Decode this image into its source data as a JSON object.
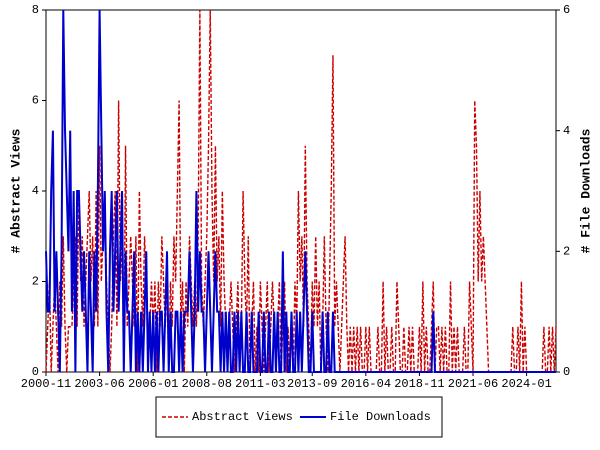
{
  "chart_data": {
    "type": "line",
    "x": [
      "2000-11",
      "2000-12",
      "2001-01",
      "2001-02",
      "2001-03",
      "2001-04",
      "2001-05",
      "2001-06",
      "2001-07",
      "2001-08",
      "2001-09",
      "2001-10",
      "2001-11",
      "2001-12",
      "2002-01",
      "2002-02",
      "2002-03",
      "2002-04",
      "2002-05",
      "2002-06",
      "2002-07",
      "2002-08",
      "2002-09",
      "2002-10",
      "2002-11",
      "2002-12",
      "2003-01",
      "2003-02",
      "2003-03",
      "2003-04",
      "2003-05",
      "2003-06",
      "2003-07",
      "2003-08",
      "2003-09",
      "2003-10",
      "2003-11",
      "2003-12",
      "2004-01",
      "2004-02",
      "2004-03",
      "2004-04",
      "2004-05",
      "2004-06",
      "2004-07",
      "2004-08",
      "2004-09",
      "2004-10",
      "2004-11",
      "2004-12",
      "2005-01",
      "2005-02",
      "2005-03",
      "2005-04",
      "2005-05",
      "2005-06",
      "2005-07",
      "2005-08",
      "2005-09",
      "2005-10",
      "2005-11",
      "2005-12",
      "2006-01",
      "2006-02",
      "2006-03",
      "2006-04",
      "2006-05",
      "2006-06",
      "2006-07",
      "2006-08",
      "2006-09",
      "2006-10",
      "2006-11",
      "2006-12",
      "2007-01",
      "2007-02",
      "2007-03",
      "2007-04",
      "2007-05",
      "2007-06",
      "2007-07",
      "2007-08",
      "2007-09",
      "2007-10",
      "2007-11",
      "2007-12",
      "2008-01",
      "2008-02",
      "2008-03",
      "2008-04",
      "2008-05",
      "2008-06",
      "2008-07",
      "2008-08",
      "2008-09",
      "2008-10",
      "2008-11",
      "2008-12",
      "2009-01",
      "2009-02",
      "2009-03",
      "2009-04",
      "2009-05",
      "2009-06",
      "2009-07",
      "2009-08",
      "2009-09",
      "2009-10",
      "2009-11",
      "2009-12",
      "2010-01",
      "2010-02",
      "2010-03",
      "2010-04",
      "2010-05",
      "2010-06",
      "2010-07",
      "2010-08",
      "2010-09",
      "2010-10",
      "2010-11",
      "2010-12",
      "2011-01",
      "2011-02",
      "2011-03",
      "2011-04",
      "2011-05",
      "2011-06",
      "2011-07",
      "2011-08",
      "2011-09",
      "2011-10",
      "2011-11",
      "2011-12",
      "2012-01",
      "2012-02",
      "2012-03",
      "2012-04",
      "2012-05",
      "2012-06",
      "2012-07",
      "2012-08",
      "2012-09",
      "2012-10",
      "2012-11",
      "2012-12",
      "2013-01",
      "2013-02",
      "2013-03",
      "2013-04",
      "2013-05",
      "2013-06",
      "2013-07",
      "2013-08",
      "2013-09",
      "2013-10",
      "2013-11",
      "2013-12",
      "2014-01",
      "2014-02",
      "2014-03",
      "2014-04",
      "2014-05",
      "2014-06",
      "2014-07",
      "2014-08",
      "2014-09",
      "2014-10",
      "2014-11",
      "2014-12",
      "2015-01",
      "2015-02",
      "2015-03",
      "2015-04",
      "2015-05",
      "2015-06",
      "2015-07",
      "2015-08",
      "2015-09",
      "2015-10",
      "2015-11",
      "2015-12",
      "2016-01",
      "2016-02",
      "2016-03",
      "2016-04",
      "2016-05",
      "2016-06",
      "2016-07",
      "2016-08",
      "2016-09",
      "2016-10",
      "2016-11",
      "2016-12",
      "2017-01",
      "2017-02",
      "2017-03",
      "2017-04",
      "2017-05",
      "2017-06",
      "2017-07",
      "2017-08",
      "2017-09",
      "2017-10",
      "2017-11",
      "2017-12",
      "2018-01",
      "2018-02",
      "2018-03",
      "2018-04",
      "2018-05",
      "2018-06",
      "2018-07",
      "2018-08",
      "2018-09",
      "2018-10",
      "2018-11",
      "2018-12",
      "2019-01",
      "2019-02",
      "2019-03",
      "2019-04",
      "2019-05",
      "2019-06",
      "2019-07",
      "2019-08",
      "2019-09",
      "2019-10",
      "2019-11",
      "2019-12",
      "2020-01",
      "2020-02",
      "2020-03",
      "2020-04",
      "2020-05",
      "2020-06",
      "2020-07",
      "2020-08",
      "2020-09",
      "2020-10",
      "2020-11",
      "2020-12",
      "2021-01",
      "2021-02",
      "2021-03",
      "2021-04",
      "2021-05",
      "2021-06",
      "2021-07",
      "2021-08",
      "2021-09",
      "2021-10",
      "2021-11",
      "2021-12",
      "2022-01",
      "2022-02",
      "2022-03",
      "2022-04",
      "2022-05",
      "2022-06",
      "2022-07",
      "2022-08",
      "2022-09",
      "2022-10",
      "2022-11",
      "2022-12",
      "2023-01",
      "2023-02",
      "2023-03",
      "2023-04",
      "2023-05",
      "2023-06",
      "2023-07",
      "2023-08",
      "2023-09",
      "2023-10",
      "2023-11",
      "2023-12",
      "2024-01",
      "2024-02",
      "2024-03",
      "2024-04",
      "2024-05",
      "2024-06",
      "2024-07",
      "2024-08",
      "2024-09",
      "2024-10",
      "2024-11",
      "2024-12",
      "2025-01",
      "2025-02",
      "2025-03",
      "2025-04",
      "2025-05",
      "2025-06"
    ],
    "series": [
      {
        "name": "Abstract Views",
        "color": "#cc0000",
        "values": [
          0,
          1,
          2,
          0,
          1,
          2,
          1,
          0,
          2,
          1,
          3,
          1,
          0,
          1,
          1,
          1,
          2,
          3,
          1,
          4,
          2,
          3,
          1,
          2,
          3,
          4,
          2,
          3,
          1,
          4,
          1,
          5,
          2,
          3,
          4,
          2,
          1,
          0,
          1,
          3,
          4,
          1,
          6,
          2,
          3,
          0,
          5,
          1,
          2,
          3,
          2,
          1,
          3,
          0,
          4,
          2,
          1,
          3,
          2,
          0,
          1,
          2,
          1,
          2,
          0,
          2,
          1,
          3,
          2,
          1,
          2,
          0,
          2,
          1,
          3,
          2,
          4,
          6,
          1,
          2,
          0,
          2,
          1,
          3,
          2,
          1,
          2,
          1,
          3,
          8,
          2,
          1,
          2,
          3,
          5,
          8,
          4,
          2,
          5,
          2,
          3,
          1,
          4,
          2,
          1,
          0,
          1,
          2,
          1,
          0,
          1,
          2,
          0,
          1,
          4,
          2,
          1,
          3,
          0,
          1,
          2,
          0,
          1,
          0,
          2,
          1,
          0,
          1,
          2,
          0,
          1,
          2,
          1,
          0,
          1,
          2,
          0,
          1,
          2,
          0,
          1,
          0,
          1,
          0,
          2,
          1,
          4,
          2,
          3,
          1,
          5,
          2,
          1,
          0,
          2,
          1,
          3,
          1,
          2,
          0,
          1,
          3,
          1,
          0,
          2,
          4,
          7,
          1,
          2,
          1,
          0,
          1,
          2,
          3,
          1,
          0,
          1,
          0,
          1,
          0,
          1,
          0,
          1,
          0,
          0,
          1,
          0,
          1,
          0,
          0,
          0,
          0,
          1,
          0,
          0,
          2,
          0,
          1,
          0,
          0,
          1,
          0,
          0,
          2,
          1,
          0,
          0,
          1,
          0,
          0,
          1,
          0,
          1,
          0,
          0,
          0,
          1,
          0,
          2,
          0,
          1,
          0,
          0,
          1,
          2,
          0,
          1,
          1,
          0,
          1,
          0,
          1,
          0,
          0,
          2,
          0,
          1,
          0,
          1,
          0,
          0,
          0,
          1,
          0,
          0,
          2,
          1,
          0,
          6,
          5,
          2,
          4,
          2,
          3,
          2,
          1,
          0,
          0,
          0,
          0,
          0,
          0,
          0,
          0,
          0,
          0,
          0,
          0,
          0,
          0,
          1,
          0,
          0,
          1,
          0,
          2,
          0,
          1,
          0,
          0,
          0,
          0,
          0,
          0,
          0,
          0,
          0,
          0,
          1,
          0,
          0,
          1,
          0,
          1,
          0,
          1
        ]
      },
      {
        "name": "File Downloads",
        "color": "#0000cc",
        "axis": "y2",
        "values": [
          2,
          1,
          1,
          3,
          4,
          1,
          2,
          1,
          0,
          2,
          6,
          4,
          3,
          2,
          4,
          1,
          3,
          0,
          3,
          3,
          2,
          1,
          2,
          1,
          0,
          2,
          1,
          0,
          2,
          1,
          3,
          6,
          4,
          2,
          3,
          1,
          0,
          2,
          3,
          1,
          2,
          3,
          1,
          2,
          3,
          0,
          2,
          1,
          1,
          0,
          1,
          2,
          0,
          1,
          0,
          1,
          0,
          1,
          2,
          0,
          1,
          0,
          1,
          0,
          1,
          0,
          1,
          1,
          0,
          1,
          2,
          0,
          1,
          0,
          0,
          1,
          1,
          0,
          1,
          0,
          1,
          1,
          1,
          2,
          1,
          0,
          1,
          3,
          1,
          2,
          1,
          1,
          0,
          1,
          2,
          1,
          0,
          1,
          2,
          1,
          1,
          0,
          1,
          0,
          1,
          0,
          1,
          0,
          0,
          1,
          0,
          1,
          0,
          1,
          0,
          0,
          1,
          0,
          0,
          1,
          0,
          0,
          0,
          1,
          0,
          0,
          1,
          0,
          0,
          1,
          0,
          0,
          1,
          0,
          1,
          0,
          0,
          2,
          0,
          1,
          0,
          0,
          1,
          0,
          0,
          1,
          0,
          1,
          0,
          1,
          2,
          1,
          0,
          0,
          1,
          0,
          0,
          0,
          0,
          0,
          1,
          0,
          0,
          1,
          0,
          0,
          1,
          0,
          0,
          0,
          0,
          0,
          0,
          0,
          0,
          0,
          0,
          0,
          0,
          0,
          0,
          0,
          0,
          0,
          0,
          0,
          0,
          0,
          0,
          0,
          0,
          0,
          0,
          0,
          0,
          0,
          0,
          0,
          0,
          0,
          0,
          0,
          0,
          0,
          0,
          0,
          0,
          0,
          0,
          0,
          0,
          0,
          0,
          0,
          0,
          0,
          0,
          0,
          0,
          0,
          0,
          0,
          0,
          0,
          1,
          0,
          0,
          0,
          0,
          0,
          0,
          0,
          0,
          0,
          0,
          0,
          0,
          0,
          0,
          0,
          0,
          0,
          0,
          0,
          0,
          0,
          0,
          0,
          0,
          0,
          0,
          0,
          0,
          0,
          0,
          0,
          0,
          0,
          0,
          0,
          0,
          0,
          0,
          0,
          0,
          0,
          0,
          0,
          0,
          0,
          0,
          0,
          0,
          0,
          0,
          0,
          0,
          0,
          0,
          0,
          0,
          0,
          0,
          0,
          0,
          0,
          0,
          0,
          0,
          0,
          0,
          0,
          0,
          0,
          0,
          0
        ]
      }
    ],
    "xlim": [
      "2000-11",
      "2025-06"
    ],
    "xticks": [
      "2000-11",
      "2003-06",
      "2006-01",
      "2008-08",
      "2011-03",
      "2013-09",
      "2016-04",
      "2018-11",
      "2021-06",
      "2024-01"
    ],
    "ylim": [
      0,
      8
    ],
    "yticks": [
      0,
      2,
      4,
      6,
      8
    ],
    "y2lim": [
      0,
      6
    ],
    "y2ticks": [
      0,
      2,
      4,
      6
    ],
    "ylabel": "# Abstract Views",
    "y2label": "# File Downloads",
    "legend": "bottom"
  }
}
